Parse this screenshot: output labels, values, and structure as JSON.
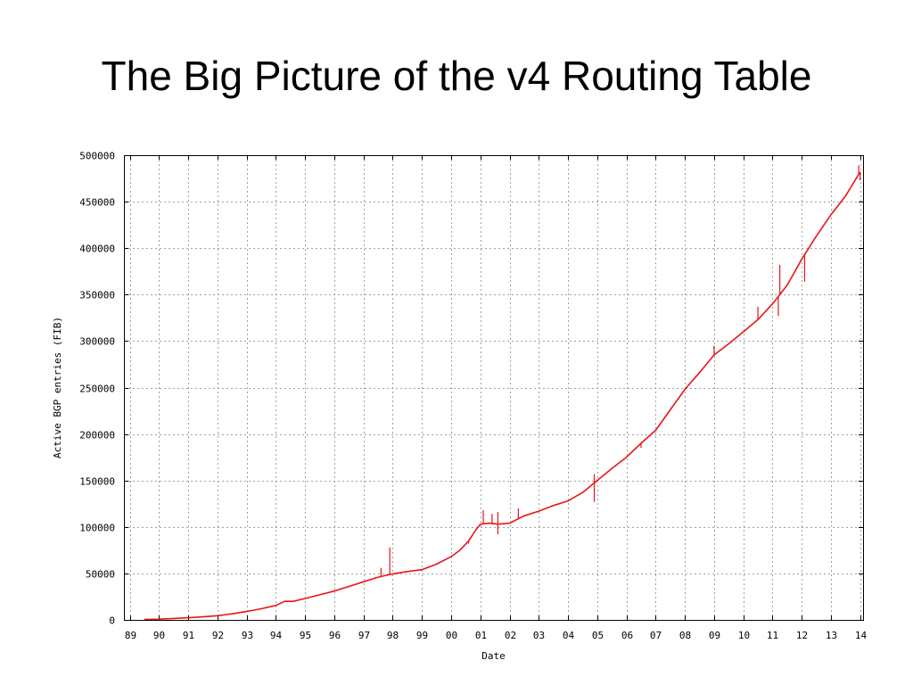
{
  "slide": {
    "title": "The Big Picture of the v4 Routing Table"
  },
  "colors": {
    "line": "#e8141a",
    "grid": "#a0a0a0",
    "frame": "#000000"
  },
  "chart_data": {
    "type": "line",
    "title": "",
    "xlabel": "Date",
    "ylabel": "Active BGP entries (FIB)",
    "xlim": [
      1988.8,
      2014.1
    ],
    "ylim": [
      0,
      500000
    ],
    "grid": true,
    "legend": "none",
    "x_ticks": [
      1989,
      1990,
      1991,
      1992,
      1993,
      1994,
      1995,
      1996,
      1997,
      1998,
      1999,
      2000,
      2001,
      2002,
      2003,
      2004,
      2005,
      2006,
      2007,
      2008,
      2009,
      2010,
      2011,
      2012,
      2013,
      2014
    ],
    "x_tick_labels": [
      "89",
      "90",
      "91",
      "92",
      "93",
      "94",
      "95",
      "96",
      "97",
      "98",
      "99",
      "00",
      "01",
      "02",
      "03",
      "04",
      "05",
      "06",
      "07",
      "08",
      "09",
      "10",
      "11",
      "12",
      "13",
      "14"
    ],
    "y_ticks": [
      0,
      50000,
      100000,
      150000,
      200000,
      250000,
      300000,
      350000,
      400000,
      450000,
      500000
    ],
    "y_tick_labels": [
      "0",
      "50000",
      "100000",
      "150000",
      "200000",
      "250000",
      "300000",
      "350000",
      "400000",
      "450000",
      "500000"
    ],
    "series": [
      {
        "color": "#e8141a",
        "x": [
          1989.5,
          1990.0,
          1990.5,
          1991.0,
          1991.5,
          1992.0,
          1992.5,
          1993.0,
          1993.5,
          1994.0,
          1994.3,
          1994.6,
          1995.0,
          1995.5,
          1996.0,
          1996.5,
          1997.0,
          1997.5,
          1998.0,
          1998.5,
          1999.0,
          1999.5,
          2000.0,
          2000.3,
          2000.6,
          2000.85,
          2001.0,
          2001.3,
          2001.6,
          2002.0,
          2002.5,
          2003.0,
          2003.5,
          2004.0,
          2004.5,
          2005.0,
          2005.5,
          2006.0,
          2006.5,
          2007.0,
          2007.5,
          2008.0,
          2008.5,
          2009.0,
          2009.5,
          2010.0,
          2010.5,
          2011.0,
          2011.5,
          2012.0,
          2012.5,
          2013.0,
          2013.5,
          2014.0
        ],
        "y": [
          500,
          800,
          1500,
          2300,
          3300,
          4500,
          6500,
          9000,
          12000,
          15500,
          20000,
          20000,
          23000,
          27000,
          31000,
          36000,
          41000,
          46000,
          49500,
          52000,
          54000,
          60000,
          68000,
          75000,
          85000,
          97000,
          103000,
          104000,
          103000,
          104000,
          112000,
          117000,
          123000,
          128000,
          137000,
          150000,
          163000,
          175000,
          190000,
          204000,
          226000,
          248000,
          266000,
          285000,
          297000,
          310000,
          323000,
          340000,
          360000,
          388000,
          413000,
          436000,
          456000,
          482000
        ]
      }
    ],
    "spikes": [
      {
        "x": 1997.9,
        "y": 78000
      },
      {
        "x": 1997.6,
        "y": 56000
      },
      {
        "x": 2000.6,
        "y": 82000
      },
      {
        "x": 2001.1,
        "y": 118000
      },
      {
        "x": 2001.4,
        "y": 114000
      },
      {
        "x": 2001.6,
        "y": 116000
      },
      {
        "x": 2002.3,
        "y": 120000
      },
      {
        "x": 2004.9,
        "y": 157000
      },
      {
        "x": 2006.5,
        "y": 185000
      },
      {
        "x": 2009.0,
        "y": 295000
      },
      {
        "x": 2010.5,
        "y": 337000
      },
      {
        "x": 2011.25,
        "y": 382000
      },
      {
        "x": 2013.95,
        "y": 489000
      }
    ],
    "dips": [
      {
        "x": 2001.6,
        "y": 92000
      },
      {
        "x": 2004.9,
        "y": 127000
      },
      {
        "x": 2011.2,
        "y": 327000
      },
      {
        "x": 2012.1,
        "y": 364000
      },
      {
        "x": 2014.0,
        "y": 473000
      }
    ]
  }
}
